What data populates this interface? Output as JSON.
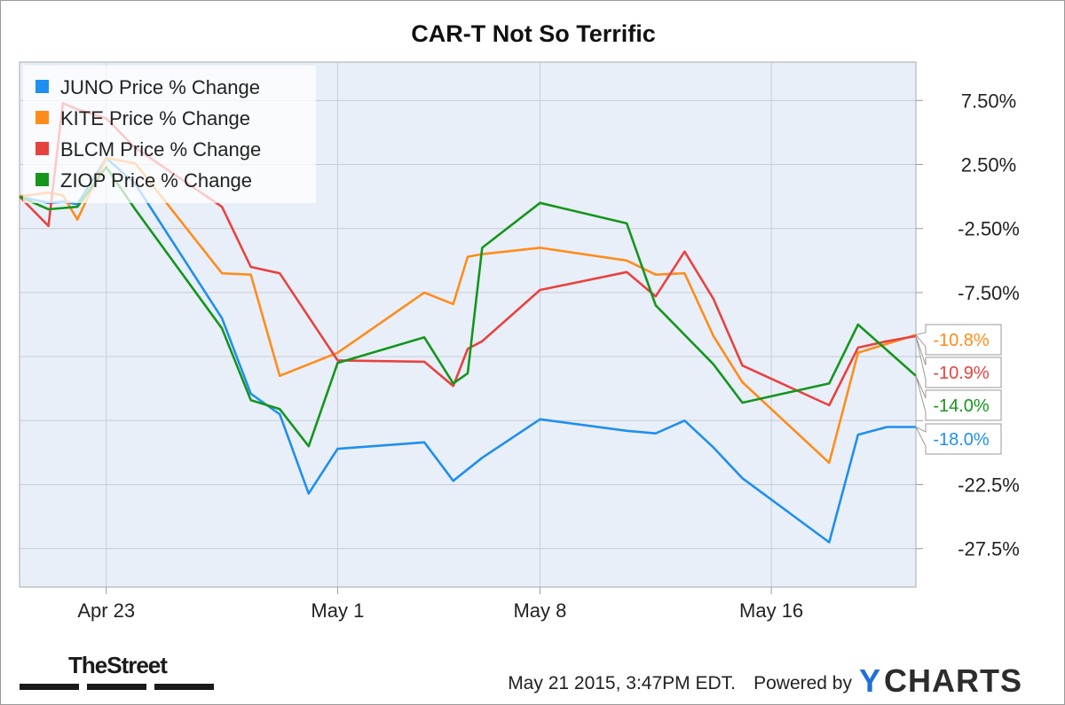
{
  "chart_data": {
    "type": "line",
    "title": "CAR-T Not So Terrific",
    "xlabel": "",
    "ylabel": "",
    "x": [
      "2015-04-20",
      "2015-04-21",
      "2015-04-22",
      "2015-04-23",
      "2015-04-24",
      "2015-04-27",
      "2015-04-28",
      "2015-04-29",
      "2015-04-30",
      "2015-05-01",
      "2015-05-04",
      "2015-05-05",
      "2015-05-06",
      "2015-05-07",
      "2015-05-08",
      "2015-05-11",
      "2015-05-12",
      "2015-05-13",
      "2015-05-14",
      "2015-05-15",
      "2015-05-18",
      "2015-05-19",
      "2015-05-20",
      "2015-05-21"
    ],
    "x_tick_labels": [
      {
        "label": "Apr 23",
        "date": "2015-04-23"
      },
      {
        "label": "May 1",
        "date": "2015-05-01"
      },
      {
        "label": "May 8",
        "date": "2015-05-08"
      },
      {
        "label": "May 16",
        "date": "2015-05-16"
      }
    ],
    "y_ticks": [
      7.5,
      2.5,
      -2.5,
      -7.5,
      -12.5,
      -17.5,
      -22.5,
      -27.5
    ],
    "y_tick_labels": [
      "7.50%",
      "2.50%",
      "-2.50%",
      "-7.50%",
      "",
      "",
      "-22.5%",
      "-27.5%"
    ],
    "ylim": [
      -30.5,
      10.5
    ],
    "grid": true,
    "y_axis_side": "right",
    "legend_placement": "top-left",
    "series": [
      {
        "name": "JUNO Price  % Change",
        "color": "#1f8ff0",
        "final_label": "-18.0%",
        "points": [
          [
            "2015-04-20",
            0.0
          ],
          [
            "2015-04-21",
            -0.5
          ],
          [
            "2015-04-21.5",
            -0.4
          ],
          [
            "2015-04-22",
            -0.6
          ],
          [
            "2015-04-23",
            3.0
          ],
          [
            "2015-04-24",
            1.0
          ],
          [
            "2015-04-27",
            -9.5
          ],
          [
            "2015-04-28",
            -15.4
          ],
          [
            "2015-04-29",
            -17.0
          ],
          [
            "2015-04-30",
            -23.2
          ],
          [
            "2015-05-01",
            -19.7
          ],
          [
            "2015-05-04",
            -19.2
          ],
          [
            "2015-05-05",
            -22.2
          ],
          [
            "2015-05-05.5",
            -21.3
          ],
          [
            "2015-05-06",
            -20.4
          ],
          [
            "2015-05-08",
            -17.4
          ],
          [
            "2015-05-11",
            -18.3
          ],
          [
            "2015-05-12",
            -18.5
          ],
          [
            "2015-05-13",
            -17.5
          ],
          [
            "2015-05-14",
            -19.6
          ],
          [
            "2015-05-15",
            -22.0
          ],
          [
            "2015-05-18",
            -27.0
          ],
          [
            "2015-05-19",
            -18.6
          ],
          [
            "2015-05-20",
            -18.0
          ],
          [
            "2015-05-21",
            -18.0
          ]
        ]
      },
      {
        "name": "KITE Price  % Change",
        "color": "#ff8c1a",
        "final_label": "-10.8%",
        "points": [
          [
            "2015-04-20",
            0.0
          ],
          [
            "2015-04-21",
            0.3
          ],
          [
            "2015-04-21.5",
            0.1
          ],
          [
            "2015-04-22",
            -1.8
          ],
          [
            "2015-04-23",
            3.0
          ],
          [
            "2015-04-24",
            2.6
          ],
          [
            "2015-04-27",
            -6.0
          ],
          [
            "2015-04-28",
            -6.1
          ],
          [
            "2015-04-29",
            -14.0
          ],
          [
            "2015-05-01",
            -12.2
          ],
          [
            "2015-05-04",
            -7.5
          ],
          [
            "2015-05-05",
            -8.4
          ],
          [
            "2015-05-05.5",
            -4.7
          ],
          [
            "2015-05-06",
            -4.5
          ],
          [
            "2015-05-08",
            -4.0
          ],
          [
            "2015-05-11",
            -5.0
          ],
          [
            "2015-05-12",
            -6.1
          ],
          [
            "2015-05-13",
            -6.0
          ],
          [
            "2015-05-14",
            -10.9
          ],
          [
            "2015-05-15",
            -14.5
          ],
          [
            "2015-05-18",
            -20.8
          ],
          [
            "2015-05-19",
            -12.2
          ],
          [
            "2015-05-20",
            -11.5
          ],
          [
            "2015-05-21",
            -10.8
          ]
        ]
      },
      {
        "name": "BLCM Price  % Change",
        "color": "#e8423f",
        "final_label": "-10.9%",
        "points": [
          [
            "2015-04-20",
            0.0
          ],
          [
            "2015-04-21",
            -2.3
          ],
          [
            "2015-04-21.5",
            7.3
          ],
          [
            "2015-04-22",
            6.8
          ],
          [
            "2015-04-23",
            6.1
          ],
          [
            "2015-04-24",
            3.8
          ],
          [
            "2015-04-27",
            -0.8
          ],
          [
            "2015-04-28",
            -5.5
          ],
          [
            "2015-04-29",
            -6.0
          ],
          [
            "2015-05-01",
            -12.8
          ],
          [
            "2015-05-04",
            -12.9
          ],
          [
            "2015-05-05",
            -14.8
          ],
          [
            "2015-05-05.5",
            -11.9
          ],
          [
            "2015-05-06",
            -11.3
          ],
          [
            "2015-05-08",
            -7.3
          ],
          [
            "2015-05-11",
            -5.9
          ],
          [
            "2015-05-12",
            -7.8
          ],
          [
            "2015-05-13",
            -4.3
          ],
          [
            "2015-05-14",
            -8.0
          ],
          [
            "2015-05-15",
            -13.2
          ],
          [
            "2015-05-18",
            -16.3
          ],
          [
            "2015-05-19",
            -11.8
          ],
          [
            "2015-05-20",
            -11.3
          ],
          [
            "2015-05-21",
            -10.9
          ]
        ]
      },
      {
        "name": "ZIOP Price  % Change",
        "color": "#14961c",
        "final_label": "-14.0%",
        "points": [
          [
            "2015-04-20",
            0.0
          ],
          [
            "2015-04-21",
            -1.0
          ],
          [
            "2015-04-22",
            -0.8
          ],
          [
            "2015-04-23",
            2.3
          ],
          [
            "2015-04-24",
            -1.0
          ],
          [
            "2015-04-27",
            -10.3
          ],
          [
            "2015-04-28",
            -15.9
          ],
          [
            "2015-04-29",
            -16.6
          ],
          [
            "2015-04-30",
            -19.5
          ],
          [
            "2015-05-01",
            -13.0
          ],
          [
            "2015-05-04",
            -11.0
          ],
          [
            "2015-05-05",
            -14.6
          ],
          [
            "2015-05-05.5",
            -13.8
          ],
          [
            "2015-05-06",
            -4.0
          ],
          [
            "2015-05-08",
            -0.5
          ],
          [
            "2015-05-11",
            -2.1
          ],
          [
            "2015-05-12",
            -8.5
          ],
          [
            "2015-05-14",
            -13.1
          ],
          [
            "2015-05-15",
            -16.1
          ],
          [
            "2015-05-18",
            -14.6
          ],
          [
            "2015-05-19",
            -10.0
          ],
          [
            "2015-05-20",
            -12.0
          ],
          [
            "2015-05-21",
            -14.0
          ]
        ]
      }
    ]
  },
  "footer": {
    "timestamp": "May 21 2015, 3:47PM EDT.",
    "powered_by": "Powered by",
    "ycharts_y": "Y",
    "ycharts_rest": "CHARTS",
    "thestreet": "TheStreet"
  }
}
